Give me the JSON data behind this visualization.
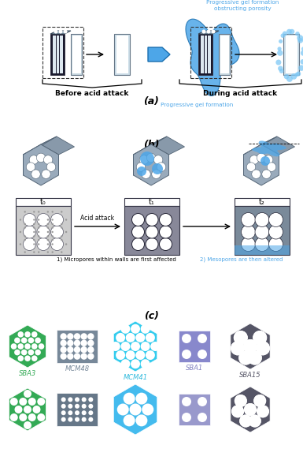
{
  "title_a": "(a)",
  "title_b": "(b)",
  "title_c": "(c)",
  "label_before": "Before acid attack",
  "label_during": "During acid attack",
  "label_gel_top": "Progressive gel formation\nobstructing porosity",
  "label_gel_bottom": "Progressive gel formation",
  "label_acid": "Acid attack",
  "label_t0": "t₀",
  "label_t1": "t₁",
  "label_t2": "t₂",
  "label_micro": "1) Micropores within walls are first affected",
  "label_meso": "2) Mesopores are then altered",
  "materials": [
    "SBA3",
    "MCM48",
    "MCM41",
    "SBA1",
    "SBA15"
  ],
  "colors": {
    "blue": "#4da6e8",
    "blue_dark": "#1a6faf",
    "blue_light": "#7ec8f5",
    "blue_gel": "#3399dd",
    "green": "#33aa55",
    "gray_body": "#8899aa",
    "gray_light": "#aabbcc",
    "gray_med": "#99aabb",
    "dark_gray": "#556677",
    "darker_gray": "#333344",
    "teal": "#4daeaa",
    "purple": "#8080c0",
    "purple_light": "#9999cc",
    "charcoal": "#555566",
    "white": "#ffffff",
    "black": "#000000",
    "bg": "#ffffff"
  },
  "figsize": [
    3.85,
    6.02
  ],
  "dpi": 100
}
